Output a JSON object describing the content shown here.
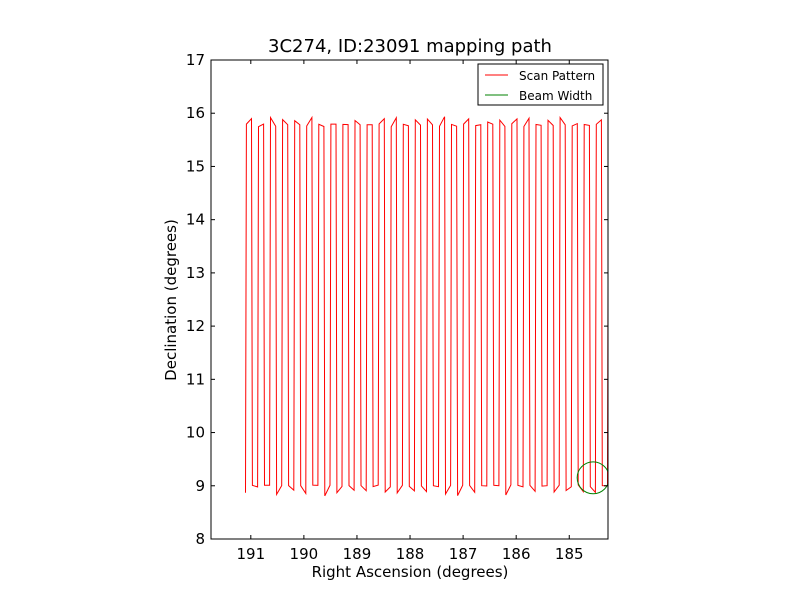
{
  "chart_data": {
    "type": "line",
    "title": "3C274, ID:23091 mapping path",
    "xlabel": "Right Ascension (degrees)",
    "ylabel": "Declination (degrees)",
    "xlim": [
      191.75,
      184.27
    ],
    "ylim": [
      8,
      17
    ],
    "x_inverted": true,
    "xticks": [
      191,
      190,
      189,
      188,
      187,
      186,
      185
    ],
    "yticks": [
      8,
      9,
      10,
      11,
      12,
      13,
      14,
      15,
      16,
      17
    ],
    "grid": false,
    "legend_position": "top-right",
    "series": [
      {
        "name": "Scan Pattern",
        "color": "#ff0000",
        "scan": {
          "ra_start": 191.1,
          "ra_end": 184.28,
          "dec_low": 9.0,
          "dec_high": 15.78,
          "legs": 60
        }
      },
      {
        "name": "Beam Width",
        "color": "#008000",
        "center_ra": 184.55,
        "center_dec": 9.15,
        "radius_deg": 0.3
      }
    ]
  }
}
